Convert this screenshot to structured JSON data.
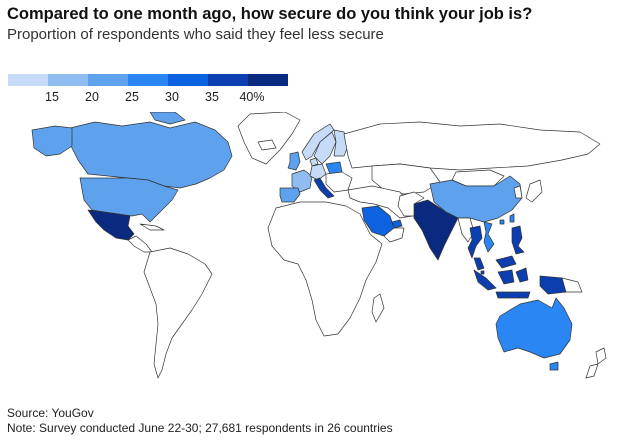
{
  "title": "Compared to one month ago, how secure do you think your job is?",
  "subtitle": "Proportion of respondents who said they feel less secure",
  "legend": {
    "colors": [
      "#c6dbf8",
      "#8fbdf2",
      "#5ea2ee",
      "#2a86f2",
      "#0d62e0",
      "#0b3fb0",
      "#0a2a80"
    ],
    "labels": [
      "15",
      "20",
      "25",
      "30",
      "35",
      "40%"
    ]
  },
  "map": {
    "no_data_color": "#ffffff",
    "countries": [
      {
        "name": "Canada",
        "bin": 3
      },
      {
        "name": "United States",
        "bin": 3
      },
      {
        "name": "Mexico",
        "bin": 7
      },
      {
        "name": "United Kingdom",
        "bin": 3
      },
      {
        "name": "Spain",
        "bin": 3
      },
      {
        "name": "France",
        "bin": 2
      },
      {
        "name": "Germany",
        "bin": 1
      },
      {
        "name": "Italy",
        "bin": 6
      },
      {
        "name": "Norway",
        "bin": 1
      },
      {
        "name": "Sweden",
        "bin": 1
      },
      {
        "name": "Finland",
        "bin": 1
      },
      {
        "name": "Denmark",
        "bin": 1
      },
      {
        "name": "Poland",
        "bin": 4
      },
      {
        "name": "Saudi Arabia",
        "bin": 5
      },
      {
        "name": "United Arab Emirates",
        "bin": 5
      },
      {
        "name": "India",
        "bin": 7
      },
      {
        "name": "China",
        "bin": 3
      },
      {
        "name": "Hong Kong",
        "bin": 4
      },
      {
        "name": "Thailand",
        "bin": 6
      },
      {
        "name": "Vietnam",
        "bin": 4
      },
      {
        "name": "Malaysia",
        "bin": 6
      },
      {
        "name": "Singapore",
        "bin": 6
      },
      {
        "name": "Indonesia",
        "bin": 6
      },
      {
        "name": "Philippines",
        "bin": 6
      },
      {
        "name": "Taiwan",
        "bin": 4
      },
      {
        "name": "Australia",
        "bin": 4
      }
    ]
  },
  "source": "Source: YouGov",
  "note": "Note: Survey conducted June 22-30; 27,681 respondents in 26 countries"
}
